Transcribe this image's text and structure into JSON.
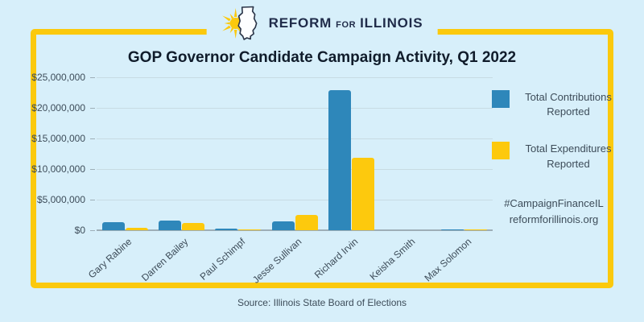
{
  "logo": {
    "word1": "REFORM",
    "word2": "FOR",
    "word3": "ILLINOIS"
  },
  "title": "GOP Governor Candidate Campaign Activity, Q1 2022",
  "legend": [
    {
      "label": "Total Contributions Reported",
      "color": "#2E87BA"
    },
    {
      "label": "Total Expenditures Reported",
      "color": "#FDC90D"
    }
  ],
  "hashtag": "#CampaignFinanceIL",
  "website": "reformforillinois.org",
  "source": "Source: Illinois State Board of Elections",
  "colors": {
    "bg": "#D7EFFA",
    "frame": "#FBC90D",
    "bar_blue": "#2E87BA",
    "bar_yellow": "#FDC90D",
    "grid": "#C7DBE3",
    "axis_line": "#9DAEB7",
    "text_dark": "#101C2B",
    "text_muted": "#3D4C59",
    "logo_navy": "#1F2B49"
  },
  "chart_data": {
    "type": "bar",
    "title": "GOP Governor Candidate Campaign Activity, Q1 2022",
    "categories": [
      "Gary Rabine",
      "Darren Bailey",
      "Paul Schimpf",
      "Jesse Sullivan",
      "Richard Irvin",
      "Keisha Smith",
      "Max Solomon"
    ],
    "series": [
      {
        "name": "Total Contributions Reported",
        "color": "#2E87BA",
        "values": [
          1300000,
          1600000,
          250000,
          1400000,
          22900000,
          0,
          100000
        ]
      },
      {
        "name": "Total Expenditures Reported",
        "color": "#FDC90D",
        "values": [
          450000,
          1150000,
          150000,
          2500000,
          11900000,
          0,
          100000
        ]
      }
    ],
    "xlabel": "",
    "ylabel": "",
    "ylim": [
      0,
      25000000
    ],
    "ytick_step": 5000000,
    "ytick_labels": [
      "$0",
      "$5,000,000",
      "$10,000,000",
      "$15,000,000",
      "$20,000,000",
      "$25,000,000"
    ],
    "grid": true,
    "legend_position": "right",
    "source": "Illinois State Board of Elections"
  }
}
